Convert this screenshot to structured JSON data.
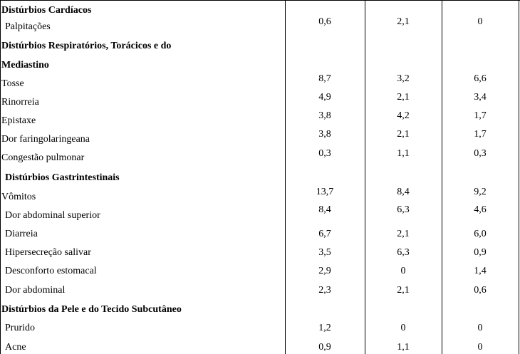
{
  "rows": [
    {
      "label": "Distúrbios Cardíacos",
      "header": true,
      "indent": 0
    },
    {
      "label": "Palpitações",
      "indent": 5,
      "values": [
        "0,6",
        "2,1",
        "0"
      ],
      "value_offset": -7
    },
    {
      "label": "Distúrbios Respiratórios, Torácicos e do",
      "header": true,
      "indent": 0
    },
    {
      "label": "Mediastino",
      "header": true,
      "indent": 0
    },
    {
      "label": "Tosse",
      "indent": 0,
      "values": [
        "8,7",
        "3,2",
        "6,6"
      ],
      "value_offset": -7
    },
    {
      "label": "Rinorreia",
      "indent": 0,
      "values": [
        "4,9",
        "2,1",
        "3,4"
      ],
      "value_offset": -7
    },
    {
      "label": "Epistaxe",
      "indent": 0,
      "values": [
        "3,8",
        "4,2",
        "1,7"
      ],
      "value_offset": -7
    },
    {
      "label": "Dor faringolaringeana",
      "indent": 0,
      "values": [
        "3,8",
        "2,1",
        "1,7"
      ],
      "value_offset": -7
    },
    {
      "label": "Congestão pulmonar",
      "indent": 0,
      "values": [
        "0,3",
        "1,1",
        "0,3"
      ],
      "value_offset": -6
    },
    {
      "label": "Distúrbios Gastrintestinais",
      "header": true,
      "indent": 5
    },
    {
      "label": "Vômitos",
      "indent": 0,
      "values": [
        "13,7",
        "8,4",
        "9,2"
      ],
      "value_offset": -7
    },
    {
      "label": "Dor abdominal superior",
      "indent": 5,
      "values": [
        "8,4",
        "6,3",
        "4,6"
      ],
      "value_offset": -8
    },
    {
      "label": "Diarreia",
      "indent": 5,
      "values": [
        "6,7",
        "2,1",
        "6,0"
      ],
      "value_offset": 0
    },
    {
      "label": "Hipersecreção salivar",
      "indent": 5,
      "values": [
        "3,5",
        "6,3",
        "0,9"
      ],
      "value_offset": 0
    },
    {
      "label": "Desconforto estomacal",
      "indent": 5,
      "values": [
        "2,9",
        "0",
        "1,4"
      ],
      "value_offset": 0
    },
    {
      "label": "Dor abdominal",
      "indent": 5,
      "values": [
        "2,3",
        "2,1",
        "0,6"
      ],
      "value_offset": 0
    },
    {
      "label": "Distúrbios da Pele e do Tecido Subcutâneo",
      "header": true,
      "indent": 0
    },
    {
      "label": "Prurido",
      "indent": 5,
      "values": [
        "1,2",
        "0",
        "0"
      ],
      "value_offset": 0
    },
    {
      "label": "Acne",
      "indent": 5,
      "values": [
        "0,9",
        "1,1",
        "0"
      ],
      "value_offset": 0
    }
  ]
}
